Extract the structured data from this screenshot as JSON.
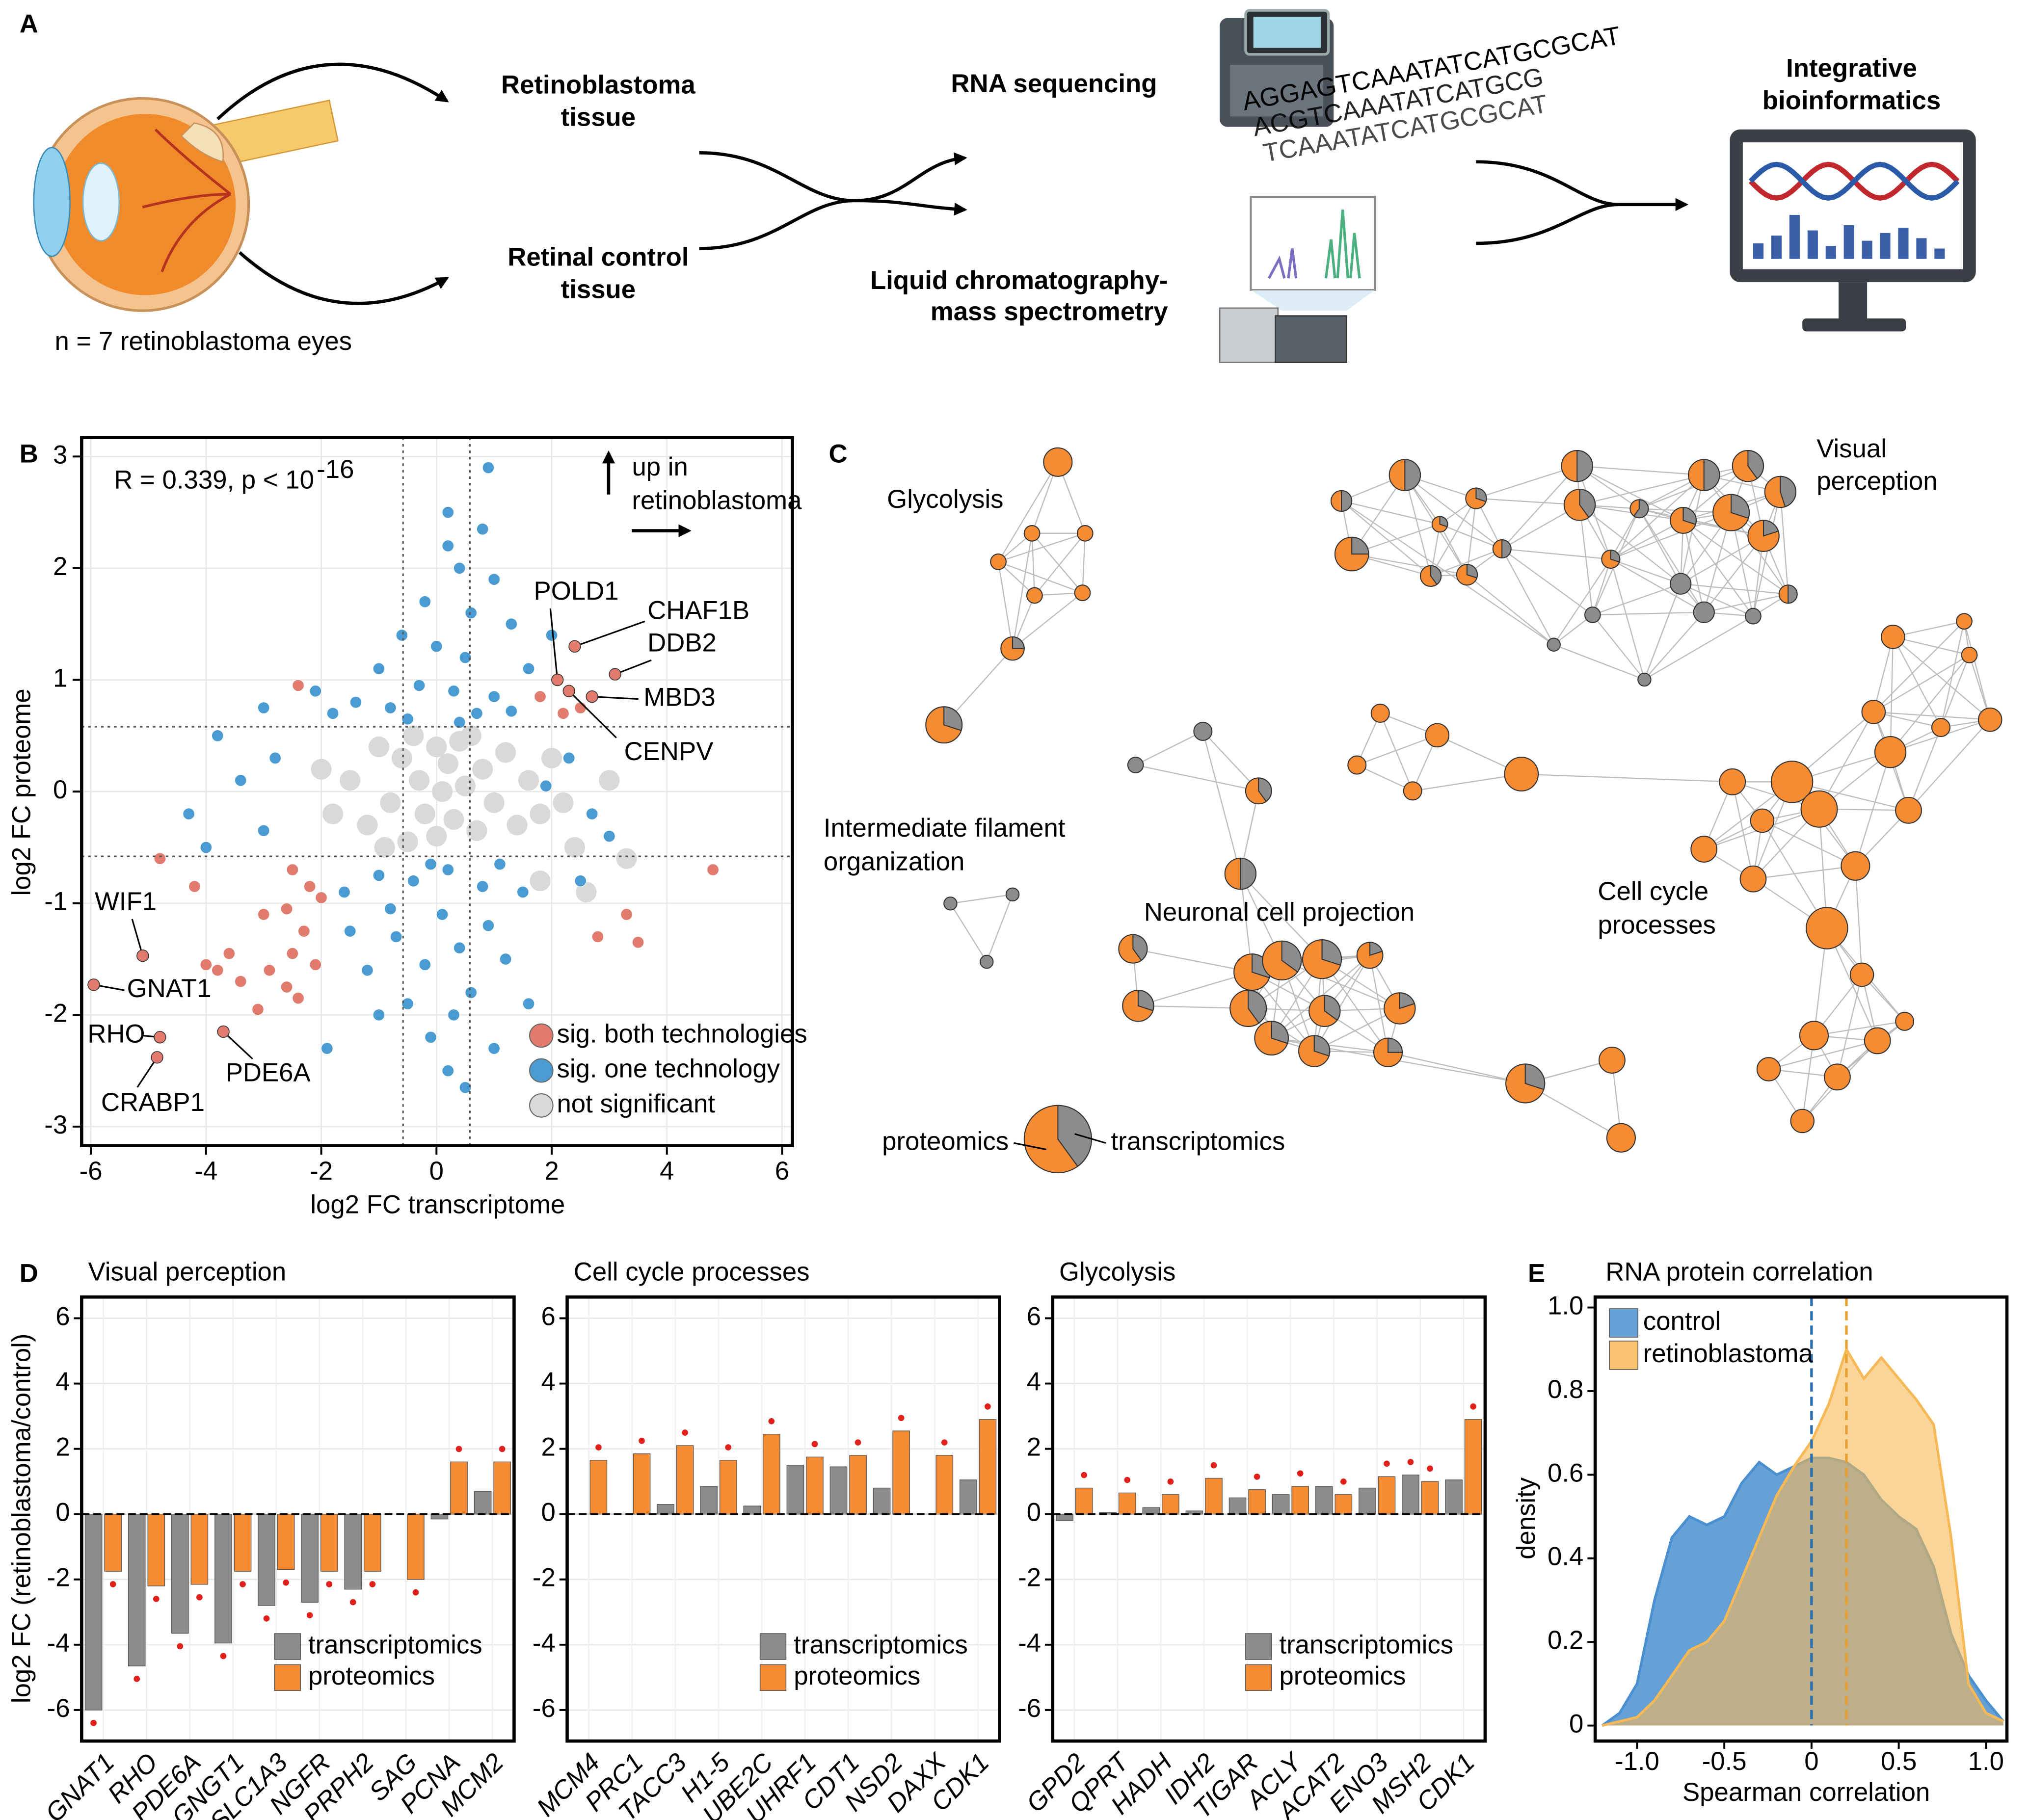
{
  "panel_labels": [
    "A",
    "B",
    "C",
    "D",
    "E"
  ],
  "panel_a": {
    "eye_caption": "n = 7 retinoblastoma eyes",
    "tissue_tumor": [
      "Retinoblastoma",
      "tissue"
    ],
    "tissue_control": [
      "Retinal control",
      "tissue"
    ],
    "rna": "RNA sequencing",
    "lcms": [
      "Liquid chromatography-",
      "mass spectrometry"
    ],
    "bioinf": [
      "Integrative",
      "bioinformatics"
    ],
    "sequence": [
      "AGGAGTCAAATATCATGCGCAT",
      "ACGTCAAATATCATGCG",
      "TCAAATATCATGCGCAT"
    ]
  },
  "panel_c": {
    "clusters": [
      [
        "Glycolysis"
      ],
      [
        "Visual",
        "perception"
      ],
      [
        "Intermediate filament",
        "organization"
      ],
      [
        "Neuronal cell projection"
      ],
      [
        "Cell cycle",
        "processes"
      ]
    ],
    "legend": [
      "proteomics",
      "transcriptomics"
    ]
  },
  "chart_data": [
    {
      "type": "scatter",
      "annotation": "R = 0.339, p < 10",
      "annotation_exponent": "-16",
      "arrow_label": [
        "up in",
        "retinoblastoma"
      ],
      "xlabel": "log2 FC transcriptome",
      "ylabel": "log2 FC proteome",
      "xlim": [
        -6.16,
        6.18
      ],
      "ylim": [
        -3.17,
        3.17
      ],
      "xticks": [
        -6,
        -4,
        -2,
        0,
        2,
        4,
        6
      ],
      "yticks": [
        -3,
        -2,
        -1,
        0,
        1,
        2,
        3
      ],
      "grid": true,
      "thresholds_x": [
        -0.58,
        0.58
      ],
      "thresholds_y": [
        -0.58,
        0.58
      ],
      "legend": "lower right",
      "series": [
        {
          "name": "sig. both technologies",
          "color": "#e07b6e",
          "x": [
            -2.4,
            1.8,
            2.2,
            2.5,
            -4.8,
            -4.2,
            -2.5,
            -2.2,
            -2.0,
            -2.6,
            -3.0,
            -2.3,
            -3.6,
            -3.8,
            -3.4,
            -2.9,
            -2.6,
            -4.0,
            -3.1,
            -2.4,
            -2.1,
            -2.5,
            4.8,
            3.5,
            2.8,
            3.3
          ],
          "values": [
            0.95,
            0.85,
            0.7,
            0.75,
            -0.6,
            -0.85,
            -0.7,
            -0.85,
            -0.95,
            -1.05,
            -1.1,
            -1.25,
            -1.45,
            -1.6,
            -1.7,
            -1.6,
            -1.75,
            -1.55,
            -1.95,
            -1.85,
            -1.55,
            -1.45,
            -0.7,
            -1.35,
            -1.3,
            -1.1
          ]
        },
        {
          "name": "sig. one technology",
          "color": "#4a9bd1",
          "x": [
            0.9,
            0.2,
            0.8,
            0.4,
            1.0,
            -0.2,
            0.6,
            1.3,
            2.0,
            -0.6,
            0,
            0.5,
            -1.0,
            1.6,
            -0.3,
            0.3,
            1.0,
            -1.4,
            -3.0,
            -2.1,
            -3.8,
            -1.8,
            0.7,
            1.3,
            -0.8,
            2.3,
            1.9,
            -2.8,
            -3.4,
            -4.3,
            -3.0,
            -4.0,
            -1.0,
            -0.4,
            0.2,
            0.8,
            -1.6,
            1.5,
            2.5,
            -0.8,
            0.1,
            0.9,
            -1.5,
            0.4,
            -0.2,
            1.2,
            -1.2,
            0.6,
            -0.5,
            0.3,
            -1.0,
            1.6,
            -1.9,
            0.2,
            -0.1,
            0.5,
            1.0,
            2.7,
            3.0,
            -0.5,
            0.4,
            1.1,
            -0.1,
            0.2,
            -0.7
          ],
          "values": [
            2.9,
            2.5,
            2.35,
            2.0,
            1.9,
            1.7,
            1.6,
            1.5,
            1.4,
            1.4,
            1.3,
            1.2,
            1.1,
            1.1,
            0.95,
            0.9,
            0.85,
            0.8,
            0.75,
            0.9,
            0.5,
            0.7,
            0.7,
            0.72,
            0.75,
            0.3,
            0.05,
            0.3,
            0.1,
            -0.2,
            -0.35,
            -0.5,
            -0.75,
            -0.8,
            -0.7,
            -0.85,
            -0.9,
            -0.9,
            -0.8,
            -1.05,
            -1.1,
            -1.2,
            -1.25,
            -1.4,
            -1.55,
            -1.5,
            -1.6,
            -1.8,
            -1.9,
            -2.0,
            -2.0,
            -1.9,
            -2.3,
            -2.5,
            -2.2,
            -2.65,
            -2.3,
            -0.2,
            -0.4,
            0.65,
            0.62,
            -0.65,
            -0.65,
            2.2,
            -1.3
          ]
        },
        {
          "name": "not significant",
          "color": "#d9d9d9",
          "x": [
            -1.5,
            -1.2,
            -1.0,
            -0.8,
            -0.6,
            -0.5,
            -0.3,
            -0.2,
            0,
            0,
            0.1,
            0.2,
            0.3,
            0.4,
            0.5,
            0.7,
            0.8,
            1.0,
            1.2,
            1.4,
            1.6,
            1.8,
            2.0,
            2.2,
            -1.8,
            -2.0,
            -0.9,
            0.6,
            -0.4,
            2.4,
            1.8,
            3.0,
            2.6,
            3.3
          ],
          "values": [
            0.1,
            -0.3,
            0.4,
            -0.1,
            0.3,
            -0.45,
            0.1,
            -0.2,
            0.4,
            -0.4,
            0,
            0.25,
            -0.25,
            0.45,
            0.05,
            -0.35,
            0.2,
            -0.1,
            0.35,
            -0.3,
            0.1,
            -0.2,
            0.3,
            -0.1,
            -0.2,
            0.2,
            -0.5,
            0.5,
            0.5,
            -0.5,
            -0.8,
            0.1,
            -0.9,
            -0.6
          ]
        }
      ],
      "labeled_points": [
        {
          "label": "POLD1",
          "x": 2.1,
          "y": 1.0
        },
        {
          "label": "CHAF1B",
          "x": 2.4,
          "y": 1.3
        },
        {
          "label": "DDB2",
          "x": 3.1,
          "y": 1.05
        },
        {
          "label": "MBD3",
          "x": 2.7,
          "y": 0.85
        },
        {
          "label": "CENPV",
          "x": 2.3,
          "y": 0.9
        },
        {
          "label": "WIF1",
          "x": -5.1,
          "y": -1.47
        },
        {
          "label": "GNAT1",
          "x": -5.95,
          "y": -1.73
        },
        {
          "label": "RHO",
          "x": -4.8,
          "y": -2.2
        },
        {
          "label": "CRABP1",
          "x": -4.85,
          "y": -2.38
        },
        {
          "label": "PDE6A",
          "x": -3.7,
          "y": -2.15
        }
      ]
    },
    {
      "type": "bar",
      "title": "Visual perception",
      "ylabel": "log2 FC (retinoblastoma/control)",
      "categories": [
        "GNAT1",
        "RHO",
        "PDE6A",
        "GNGT1",
        "SLC1A3",
        "NGFR",
        "PRPH2",
        "SAG",
        "PCNA",
        "MCM2"
      ],
      "series": [
        {
          "name": "transcriptomics",
          "color": "#8c8c8c",
          "values": [
            -6.0,
            -4.65,
            -3.65,
            -3.95,
            -2.8,
            -2.7,
            -2.3,
            0,
            -0.15,
            0.7
          ],
          "significant": [
            true,
            true,
            true,
            true,
            true,
            true,
            true,
            false,
            false,
            false
          ]
        },
        {
          "name": "proteomics",
          "color": "#f58b33",
          "values": [
            -1.75,
            -2.2,
            -2.15,
            -1.75,
            -1.7,
            -1.75,
            -1.75,
            -2.0,
            1.6,
            1.6
          ],
          "significant": [
            true,
            true,
            true,
            true,
            true,
            true,
            true,
            true,
            true,
            true
          ]
        }
      ],
      "ylim": [
        -6.95,
        6.65
      ],
      "yticks": [
        -6,
        -4,
        -2,
        0,
        2,
        4,
        6
      ],
      "grid": true,
      "legend": "lower right"
    },
    {
      "type": "bar",
      "title": "Cell cycle processes",
      "categories": [
        "MCM4",
        "PRC1",
        "TACC3",
        "H1-5",
        "UBE2C",
        "UHRF1",
        "CDT1",
        "NSD2",
        "DAXX",
        "CDK1"
      ],
      "series": [
        {
          "name": "transcriptomics",
          "color": "#8c8c8c",
          "values": [
            0,
            0,
            0.3,
            0.85,
            0.25,
            1.5,
            1.45,
            0.8,
            0,
            1.05
          ],
          "significant": [
            false,
            false,
            false,
            false,
            false,
            false,
            false,
            false,
            false,
            false
          ]
        },
        {
          "name": "proteomics",
          "color": "#f58b33",
          "values": [
            1.65,
            1.85,
            2.1,
            1.65,
            2.45,
            1.75,
            1.8,
            2.55,
            1.8,
            2.9
          ],
          "significant": [
            true,
            true,
            true,
            true,
            true,
            true,
            true,
            true,
            true,
            true
          ]
        }
      ],
      "ylim": [
        -6.95,
        6.65
      ],
      "yticks": [
        -6,
        -4,
        -2,
        0,
        2,
        4,
        6
      ],
      "grid": true,
      "legend": "lower right"
    },
    {
      "type": "bar",
      "title": "Glycolysis",
      "categories": [
        "GPD2",
        "QPRT",
        "HADH",
        "IDH2",
        "TIGAR",
        "ACLY",
        "ACAT2",
        "ENO3",
        "MSH2",
        "CDK1"
      ],
      "series": [
        {
          "name": "transcriptomics",
          "color": "#8c8c8c",
          "values": [
            -0.2,
            0.05,
            0.2,
            0.1,
            0.5,
            0.6,
            0.85,
            0.8,
            1.2,
            1.05
          ],
          "significant": [
            false,
            false,
            false,
            false,
            false,
            false,
            false,
            false,
            true,
            false
          ]
        },
        {
          "name": "proteomics",
          "color": "#f58b33",
          "values": [
            0.8,
            0.65,
            0.6,
            1.1,
            0.75,
            0.85,
            0.6,
            1.15,
            1.0,
            2.9
          ],
          "significant": [
            true,
            true,
            true,
            true,
            true,
            true,
            true,
            true,
            true,
            true
          ]
        }
      ],
      "ylim": [
        -6.95,
        6.65
      ],
      "yticks": [
        -6,
        -4,
        -2,
        0,
        2,
        4,
        6
      ],
      "grid": true,
      "legend": "lower right"
    },
    {
      "type": "area",
      "title": "RNA protein correlation",
      "xlabel": "Spearman correlation",
      "ylabel": "density",
      "x": [
        -1.2,
        -1.1,
        -1.0,
        -0.9,
        -0.8,
        -0.7,
        -0.6,
        -0.5,
        -0.4,
        -0.3,
        -0.2,
        -0.1,
        0,
        0.1,
        0.2,
        0.3,
        0.4,
        0.5,
        0.6,
        0.7,
        0.8,
        0.9,
        1.0,
        1.1
      ],
      "series": [
        {
          "name": "control",
          "color": "#4a8fd0",
          "median": 0,
          "values": [
            0,
            0.03,
            0.1,
            0.3,
            0.45,
            0.5,
            0.48,
            0.5,
            0.58,
            0.63,
            0.6,
            0.62,
            0.64,
            0.64,
            0.63,
            0.6,
            0.54,
            0.5,
            0.47,
            0.38,
            0.22,
            0.12,
            0.06,
            0.01
          ]
        },
        {
          "name": "retinoblastoma",
          "color": "#f7b955",
          "median": 0.2,
          "values": [
            0,
            0.01,
            0.02,
            0.06,
            0.12,
            0.18,
            0.2,
            0.25,
            0.35,
            0.45,
            0.55,
            0.62,
            0.68,
            0.77,
            0.9,
            0.83,
            0.88,
            0.83,
            0.78,
            0.72,
            0.45,
            0.1,
            0.03,
            0.01
          ]
        }
      ],
      "xlim": [
        -1.24,
        1.12
      ],
      "ylim": [
        -0.037,
        1.025
      ],
      "xticks": [
        {
          "value": -1,
          "label": "-1.0"
        },
        {
          "value": -0.5,
          "label": "-0.5"
        },
        0,
        0.5,
        {
          "value": 1,
          "label": "1.0"
        }
      ],
      "yticks": [
        0,
        0.2,
        0.4,
        0.6,
        0.8,
        {
          "value": 1,
          "label": "1.0"
        }
      ],
      "grid": false,
      "legend": "upper left"
    }
  ]
}
